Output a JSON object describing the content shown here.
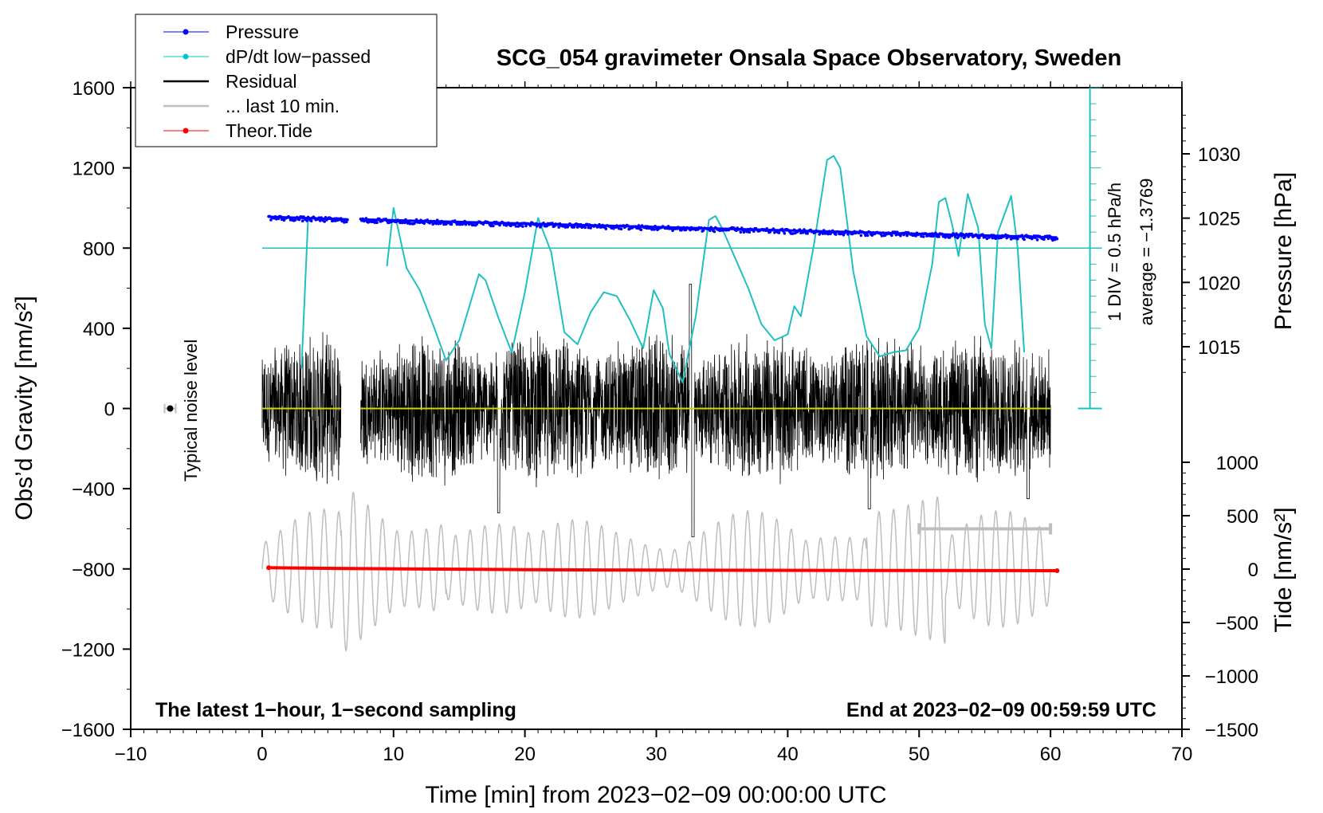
{
  "chart_data": {
    "type": "line",
    "title": "SCG_054 gravimeter Onsala Space Observatory, Sweden",
    "xlabel": "Time [min] from 2023−02−09 00:00:00 UTC",
    "ylabel_left": "Obs’d Gravity [nm/s²]",
    "ylabel_right_top": "Pressure [hPa]",
    "ylabel_right_bottom": "Tide [nm/s²]",
    "xlim": [
      -10,
      70
    ],
    "ylim": [
      -1600,
      1600
    ],
    "x_ticks": [
      -10,
      0,
      10,
      20,
      30,
      40,
      50,
      60,
      70
    ],
    "x_tick_labels": [
      "−10",
      "0",
      "10",
      "20",
      "30",
      "40",
      "50",
      "60",
      "70"
    ],
    "y_ticks": [
      1600,
      1200,
      800,
      400,
      0,
      -400,
      -800,
      -1200,
      -1600
    ],
    "y_tick_labels": [
      "1600",
      "1200",
      "800",
      "400",
      "0",
      "−400",
      "−800",
      "−1200",
      "−1600"
    ],
    "pressure_ticks": [
      1030,
      1025,
      1020,
      1015
    ],
    "pressure_tick_labels": [
      "1030",
      "1025",
      "1020",
      "1015"
    ],
    "tide_ticks": [
      1000,
      500,
      0,
      -500,
      -1000,
      -1500
    ],
    "tide_tick_labels": [
      "1000",
      "500",
      "0",
      "−500",
      "−1000",
      "−1500"
    ],
    "legend": [
      {
        "label": "Pressure",
        "color": "#0000ff",
        "style": "dot-line"
      },
      {
        "label": "dP/dt low−passed",
        "color": "#00c8c8",
        "style": "dot-line"
      },
      {
        "label": "Residual",
        "color": "#000000",
        "style": "line"
      },
      {
        "label": "... last 10 min.",
        "color": "#bebebe",
        "style": "line"
      },
      {
        "label": "Theor.Tide",
        "color": "#ff0000",
        "style": "dot-line"
      }
    ],
    "legend_position": "top-left",
    "dpdt_scale_label": "1 DIV = 0.5 hPa/h",
    "dpdt_average_label": "average = −1.3769",
    "noise_label": "Typical noise level",
    "noise_x": -7,
    "footer_left": "The latest 1−hour, 1−second sampling",
    "footer_right": "End at 2023−02−09 00:59:59 UTC",
    "pressure_series": {
      "x": [
        0.5,
        6.5,
        7.5,
        60.5
      ],
      "y": [
        1025.1,
        1024.9,
        1024.9,
        1023.5
      ]
    },
    "dpdt_series": {
      "name": "dP/dt low-passed",
      "x": [
        3.0,
        3.5,
        9.5,
        10.0,
        11.0,
        12.0,
        13.0,
        14.0,
        15.0,
        16.0,
        16.5,
        17.0,
        18.0,
        19.0,
        20.0,
        21.0,
        22.0,
        23.0,
        24.0,
        25.0,
        26.0,
        27.0,
        28.0,
        29.0,
        29.8,
        30.5,
        31.0,
        32.0,
        33.0,
        34.0,
        34.5,
        35.0,
        36.0,
        37.0,
        38.0,
        39.0,
        40.0,
        40.5,
        41.0,
        42.0,
        43.0,
        43.5,
        44.0,
        45.0,
        46.0,
        47.0,
        48.0,
        49.0,
        50.0,
        51.0,
        51.5,
        52.0,
        52.5,
        53.0,
        53.7,
        54.5,
        55.0,
        55.5,
        56.0,
        57.0,
        57.5,
        58.0
      ],
      "y": [
        200,
        950,
        710,
        1000,
        700,
        590,
        420,
        240,
        340,
        560,
        670,
        640,
        450,
        280,
        580,
        950,
        780,
        380,
        320,
        480,
        580,
        560,
        440,
        300,
        590,
        500,
        270,
        130,
        460,
        940,
        960,
        900,
        750,
        600,
        420,
        340,
        370,
        510,
        460,
        820,
        1240,
        1260,
        1200,
        680,
        360,
        260,
        280,
        290,
        400,
        720,
        1030,
        1050,
        920,
        760,
        1070,
        900,
        420,
        300,
        880,
        1060,
        800,
        280
      ]
    },
    "dpdt_zero_y": 800,
    "residual_series": {
      "x_range": [
        0,
        60
      ],
      "envelope_nm_s2": 250,
      "gap": [
        6,
        7.5
      ],
      "peak_min": -640,
      "peak_max": 620
    },
    "last10_series": {
      "x_range": [
        0,
        60
      ],
      "offset": -800,
      "amplitude": 300,
      "bar_x": [
        50,
        60
      ],
      "bar_y": -600
    },
    "tide_series": {
      "x": [
        0.5,
        6.5,
        20,
        30,
        45,
        60.5
      ],
      "y": [
        13,
        5,
        -5,
        -10,
        -13,
        -15
      ]
    }
  }
}
